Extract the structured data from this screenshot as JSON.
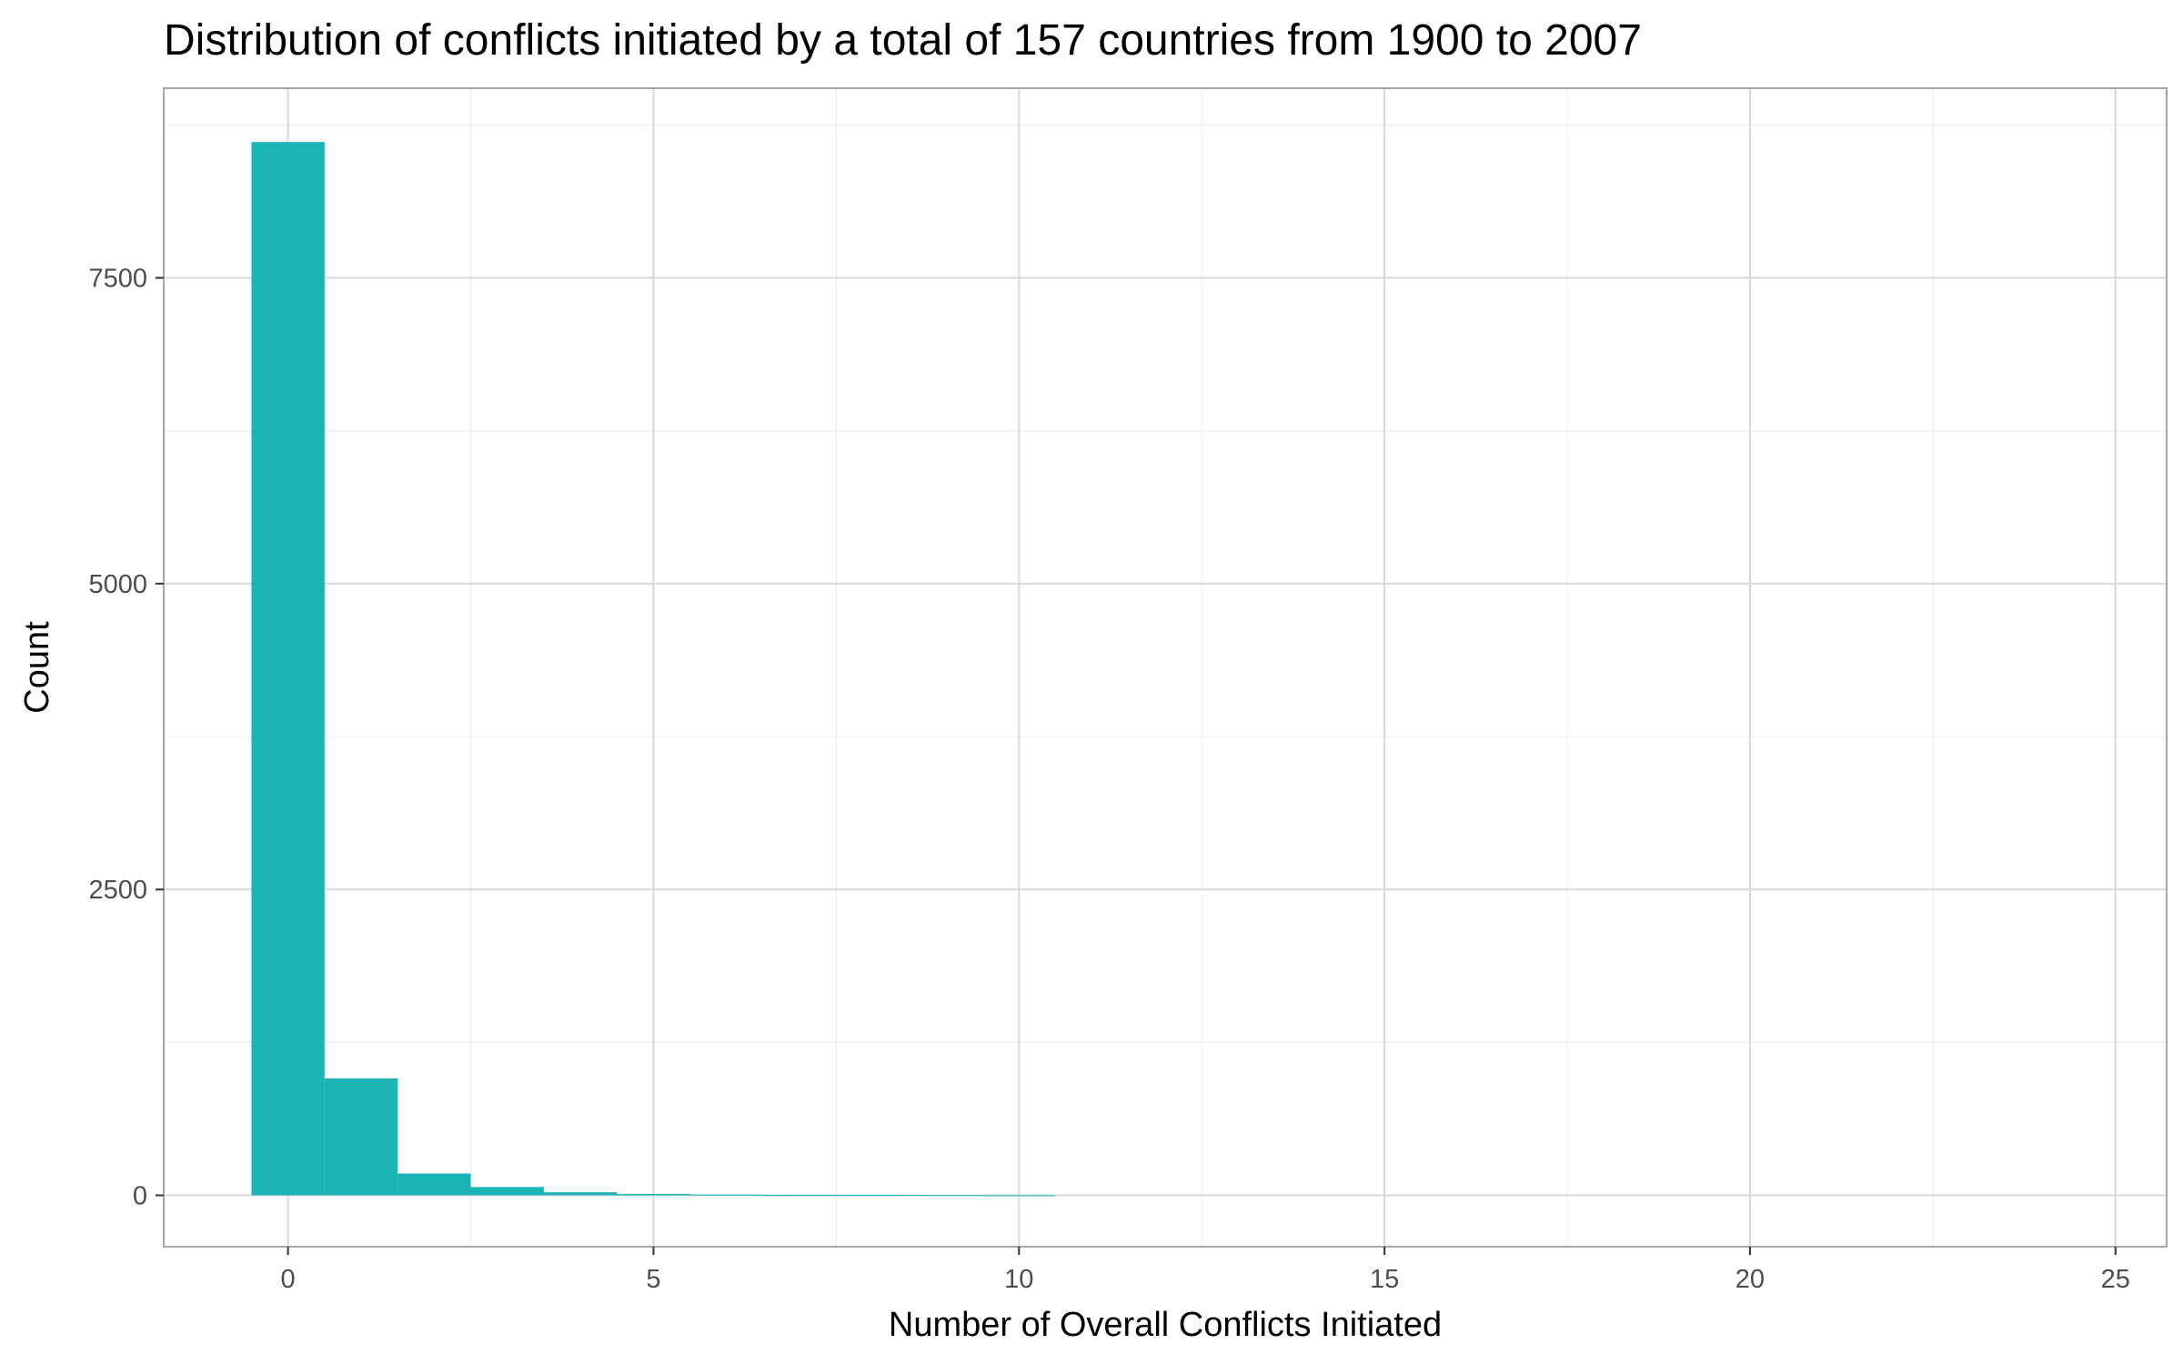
{
  "chart_data": {
    "type": "bar",
    "title": "Distribution of conflicts initiated by a total of 157 countries from 1900 to 2007",
    "xlabel": "Number of Overall Conflicts Initiated",
    "ylabel": "Count",
    "xlim": [
      -1.7,
      25.7
    ],
    "ylim": [
      -420,
      9050
    ],
    "x_ticks": [
      0,
      5,
      10,
      15,
      20,
      25
    ],
    "x_tick_labels": [
      "0",
      "5",
      "10",
      "15",
      "20",
      "25"
    ],
    "y_ticks": [
      0,
      2500,
      5000,
      7500
    ],
    "y_tick_labels": [
      "0",
      "2500",
      "5000",
      "7500"
    ],
    "x": [
      0,
      1,
      2,
      3,
      4,
      5,
      6,
      7,
      8,
      9,
      10
    ],
    "values": [
      8610,
      955,
      178,
      68,
      25,
      12,
      6,
      4,
      3,
      2,
      1
    ],
    "bar_width": 1,
    "bar_color": "#1AB3B6",
    "grid": true,
    "legend": "none"
  }
}
